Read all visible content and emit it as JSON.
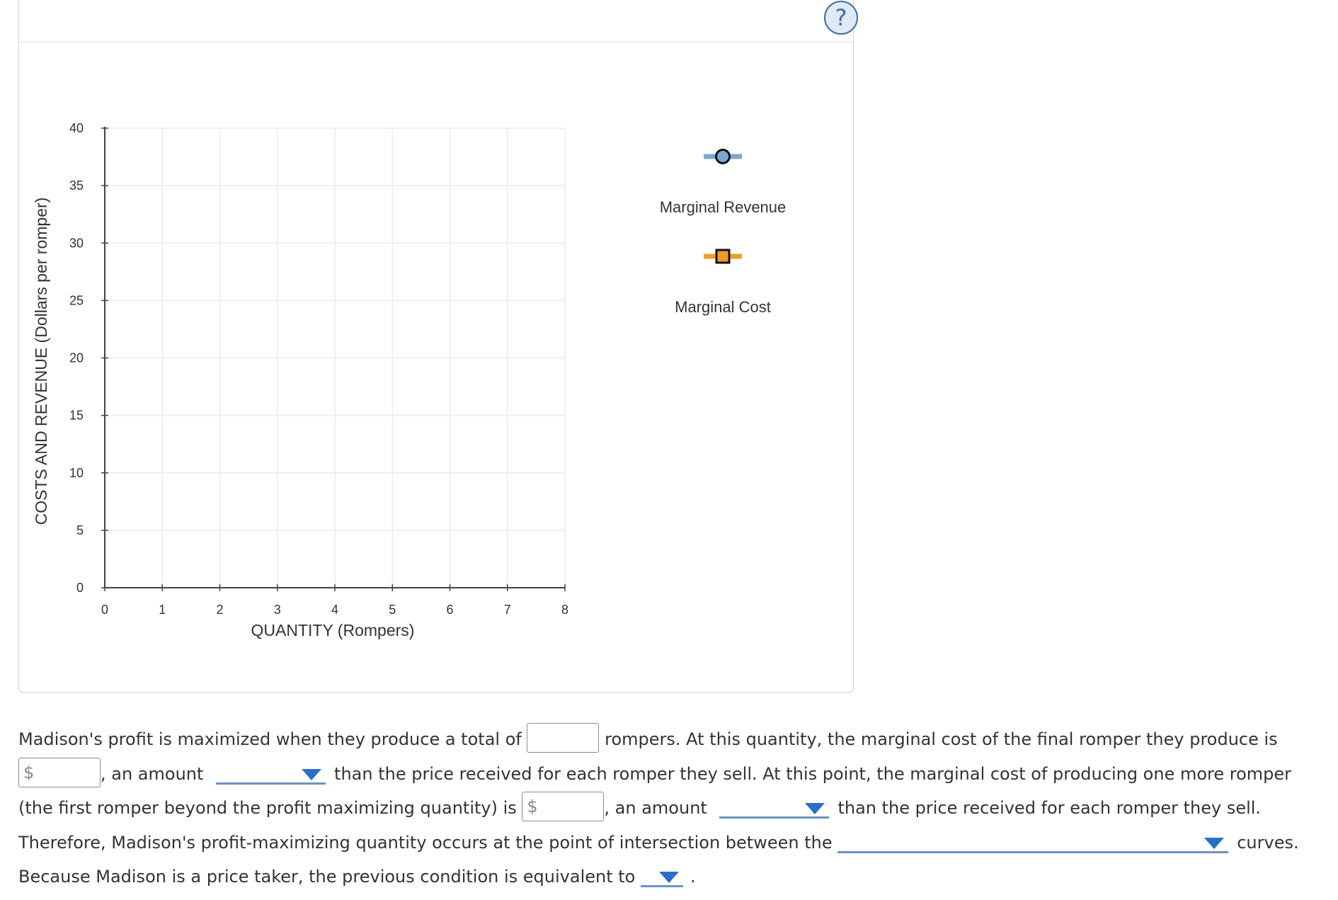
{
  "help": {
    "label": "?"
  },
  "chart_data": {
    "type": "line",
    "xlabel": "QUANTITY (Rompers)",
    "ylabel": "COSTS AND REVENUE (Dollars per romper)",
    "xlim": [
      0,
      8
    ],
    "ylim": [
      0,
      40
    ],
    "x_ticks": [
      "0",
      "1",
      "2",
      "3",
      "4",
      "5",
      "6",
      "7",
      "8"
    ],
    "y_ticks": [
      "0",
      "5",
      "10",
      "15",
      "20",
      "25",
      "30",
      "35",
      "40"
    ],
    "grid": true,
    "series": [
      {
        "name": "Marginal Revenue",
        "values": [],
        "color": "#7ea6d0",
        "marker": "circle",
        "marker_fill": "#7aa6d2"
      },
      {
        "name": "Marginal Cost",
        "values": [],
        "color": "#f2a020",
        "marker": "square",
        "marker_fill": "#f29a1f"
      }
    ],
    "legend_position": "right"
  },
  "question": {
    "s1": "Madison's profit is maximized when they produce a total of",
    "s2": "rompers. At this quantity, the marginal cost of the final romper they produce is",
    "currency": "$",
    "s3": ", an amount",
    "s4": "than the price received for each romper they sell. At this point, the marginal cost of producing one more romper",
    "s5": "(the first romper beyond the profit maximizing quantity) is",
    "s6": ", an amount",
    "s7": "than the price received for each romper they sell.",
    "s8": "Therefore, Madison's profit-maximizing quantity occurs at the point of intersection between the",
    "s9": "curves.",
    "s10": "Because Madison is a price taker, the previous condition is equivalent to",
    "s11": "."
  }
}
